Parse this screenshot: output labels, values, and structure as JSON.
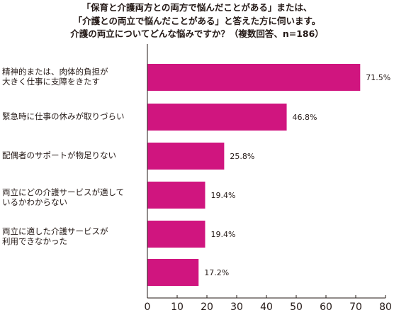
{
  "chart_data": {
    "type": "bar",
    "orientation": "horizontal",
    "title_lines": [
      "「保育と介護両方との両方で悩んだことがある」または、",
      "「介護との両立で悩んだことがある」と答えた方に伺います。",
      "介護の両立についてどんな悩みですか？（複数回答、n=186）"
    ],
    "categories": [
      "精神的または、肉体的負担が\n大きく仕事に支障をきたす",
      "緊急時に仕事の休みが取りづらい",
      "配偶者のサポートが物足りない",
      "両立にどの介護サービスが適して\nいるかわからない",
      "両立に適した介護サービスが\n利用できなかった",
      ""
    ],
    "values": [
      71.5,
      46.8,
      25.8,
      19.4,
      19.4,
      17.2
    ],
    "value_labels": [
      "71.5%",
      "46.8%",
      "25.8%",
      "19.4%",
      "19.4%",
      "17.2%"
    ],
    "xlim": [
      0,
      80
    ],
    "xticks": [
      "0",
      "10",
      "20",
      "30",
      "40",
      "50",
      "60",
      "70",
      "80"
    ],
    "xtick_values": [
      0,
      10,
      20,
      30,
      40,
      50,
      60,
      70,
      80
    ],
    "xlabel": "",
    "ylabel": "",
    "grid": false,
    "bar_color": "#d0157f",
    "axis_color": "#231815"
  }
}
